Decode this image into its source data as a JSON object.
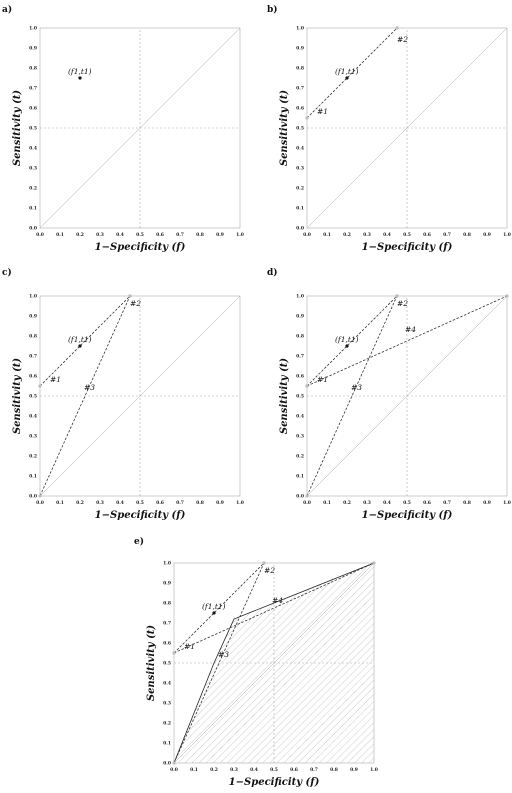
{
  "chart_data": [
    {
      "panel": "a)",
      "type": "scatter",
      "xlabel": "1−Specificity  (f)",
      "ylabel": "Sensitivity  (t)",
      "xlim": [
        0,
        1
      ],
      "ylim": [
        0,
        1
      ],
      "ticks": [
        "0.0",
        "0.1",
        "0.2",
        "0.3",
        "0.4",
        "0.5",
        "0.6",
        "0.7",
        "0.8",
        "0.9",
        "1.0"
      ],
      "points": [
        {
          "label": "(f1,t1)",
          "f": 0.2,
          "t": 0.75
        }
      ],
      "lines": [],
      "hull": null
    },
    {
      "panel": "b)",
      "type": "line",
      "xlabel": "1−Specificity  (f)",
      "ylabel": "Sensitivity  (t)",
      "xlim": [
        0,
        1
      ],
      "ylim": [
        0,
        1
      ],
      "ticks": [
        "0.0",
        "0.1",
        "0.2",
        "0.3",
        "0.4",
        "0.5",
        "0.6",
        "0.7",
        "0.8",
        "0.9",
        "1.0"
      ],
      "points": [
        {
          "label": "(f1,t1)",
          "f": 0.2,
          "t": 0.75
        }
      ],
      "lines": [
        {
          "name": "#1",
          "from": [
            0,
            0.55
          ],
          "to": [
            0.45,
            1.0
          ],
          "label_at": [
            0.05,
            0.57
          ]
        },
        {
          "name": "#2",
          "from": [
            0,
            0.55
          ],
          "to": [
            0.45,
            1.0
          ],
          "label_at": [
            0.45,
            0.93
          ]
        }
      ],
      "hull": null
    },
    {
      "panel": "c)",
      "type": "line",
      "xlabel": "1−Specificity  (f)",
      "ylabel": "Sensitivity  (t)",
      "xlim": [
        0,
        1
      ],
      "ylim": [
        0,
        1
      ],
      "ticks": [
        "0.0",
        "0.1",
        "0.2",
        "0.3",
        "0.4",
        "0.5",
        "0.6",
        "0.7",
        "0.8",
        "0.9",
        "1.0"
      ],
      "points": [
        {
          "label": "(f1,t1)",
          "f": 0.2,
          "t": 0.75
        }
      ],
      "lines": [
        {
          "name": "#1",
          "from": [
            0,
            0.55
          ],
          "to": [
            0.45,
            1.0
          ],
          "label_at": [
            0.05,
            0.57
          ]
        },
        {
          "name": "#2",
          "from": [
            0,
            0.55
          ],
          "to": [
            0.45,
            1.0
          ],
          "label_at": [
            0.45,
            0.95
          ]
        },
        {
          "name": "#3",
          "from": [
            0,
            0
          ],
          "to": [
            0.45,
            1.0
          ],
          "label_at": [
            0.22,
            0.53
          ]
        }
      ],
      "hull": null
    },
    {
      "panel": "d)",
      "type": "line",
      "xlabel": "1−Specificity  (f)",
      "ylabel": "Sensitivity  (t)",
      "xlim": [
        0,
        1
      ],
      "ylim": [
        0,
        1
      ],
      "ticks": [
        "0.0",
        "0.1",
        "0.2",
        "0.3",
        "0.4",
        "0.5",
        "0.6",
        "0.7",
        "0.8",
        "0.9",
        "1.0"
      ],
      "points": [
        {
          "label": "(f1,t1)",
          "f": 0.2,
          "t": 0.75
        }
      ],
      "lines": [
        {
          "name": "#1",
          "from": [
            0,
            0.55
          ],
          "to": [
            0.45,
            1.0
          ],
          "label_at": [
            0.05,
            0.57
          ]
        },
        {
          "name": "#2",
          "from": [
            0,
            0.55
          ],
          "to": [
            0.45,
            1.0
          ],
          "label_at": [
            0.45,
            0.95
          ]
        },
        {
          "name": "#3",
          "from": [
            0,
            0
          ],
          "to": [
            0.45,
            1.0
          ],
          "label_at": [
            0.22,
            0.53
          ]
        },
        {
          "name": "#4",
          "from": [
            0,
            0.55
          ],
          "to": [
            1.0,
            1.0
          ],
          "label_at": [
            0.49,
            0.82
          ]
        }
      ],
      "hull": null
    },
    {
      "panel": "e)",
      "type": "area",
      "xlabel": "1−Specificity  (f)",
      "ylabel": "Sensitivity  (t)",
      "xlim": [
        0,
        1
      ],
      "ylim": [
        0,
        1
      ],
      "ticks": [
        "0.0",
        "0.1",
        "0.2",
        "0.3",
        "0.4",
        "0.5",
        "0.6",
        "0.7",
        "0.8",
        "0.9",
        "1.0"
      ],
      "points": [
        {
          "label": "(f1,t1)",
          "f": 0.2,
          "t": 0.75
        }
      ],
      "lines": [
        {
          "name": "#1",
          "from": [
            0,
            0.55
          ],
          "to": [
            0.45,
            1.0
          ],
          "label_at": [
            0.05,
            0.57
          ]
        },
        {
          "name": "#2",
          "from": [
            0,
            0.55
          ],
          "to": [
            0.45,
            1.0
          ],
          "label_at": [
            0.45,
            0.95
          ]
        },
        {
          "name": "#3",
          "from": [
            0,
            0
          ],
          "to": [
            0.45,
            1.0
          ],
          "label_at": [
            0.22,
            0.53
          ]
        },
        {
          "name": "#4",
          "from": [
            0,
            0.55
          ],
          "to": [
            1.0,
            1.0
          ],
          "label_at": [
            0.49,
            0.8
          ]
        }
      ],
      "hull": [
        [
          0,
          0
        ],
        [
          0.2,
          0.5
        ],
        [
          0.3,
          0.72
        ],
        [
          0.5,
          0.8
        ],
        [
          1.0,
          1.0
        ]
      ]
    }
  ]
}
